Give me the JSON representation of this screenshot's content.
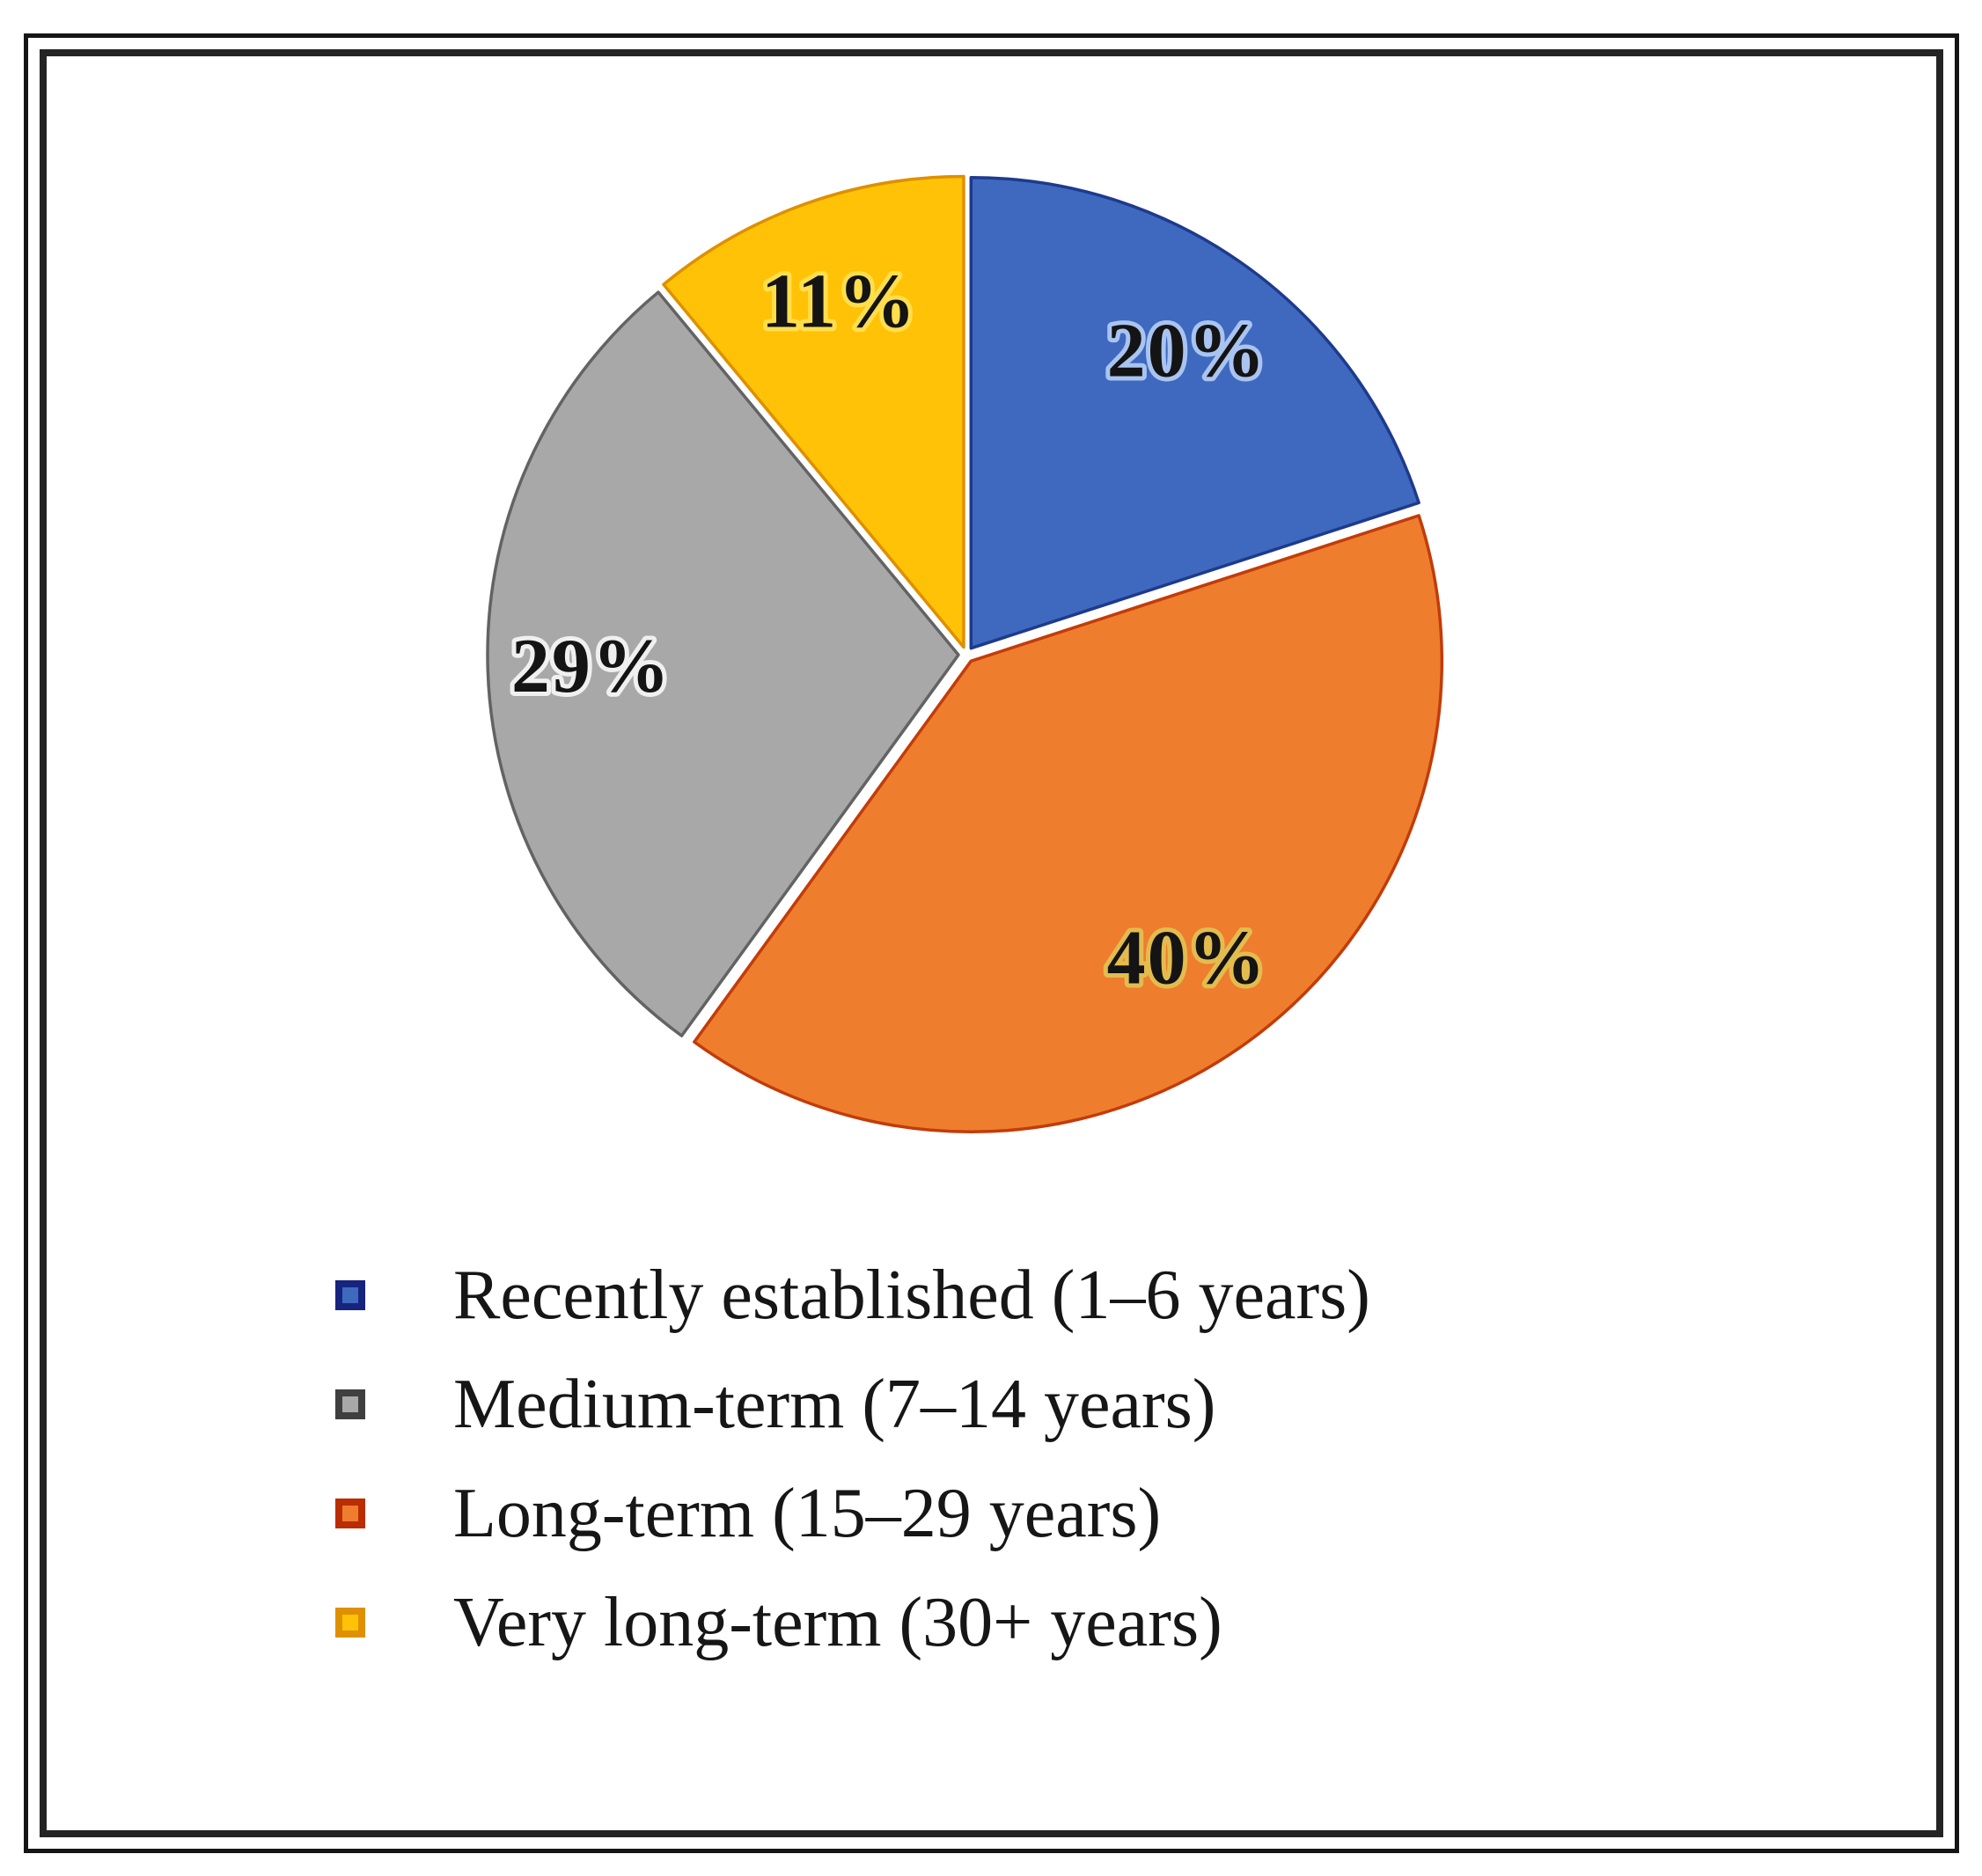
{
  "figure": {
    "background": "#FFFFFF",
    "outer_frame_color": "#151515",
    "inner_frame_color": "#242424"
  },
  "chart_data": {
    "type": "pie",
    "title": "",
    "unit": "percent",
    "start_angle_deg": 0,
    "direction": "clockwise",
    "legend_position": "bottom-left",
    "slices": [
      {
        "label": "Recently established (1–6 years)",
        "value": 20,
        "data_label": "20%",
        "fill": "#3E69BE",
        "border": "#1E3A8C",
        "halo": "#A9C4F0"
      },
      {
        "label": "Long-term (15–29 years)",
        "value": 40,
        "data_label": "40%",
        "fill": "#EF7D2E",
        "border": "#C23C09",
        "halo": "#E3BC4E"
      },
      {
        "label": "Medium-term (7–14 years)",
        "value": 29,
        "data_label": "29%",
        "fill": "#A8A8A8",
        "border": "#636363",
        "halo": "#F0F0F0"
      },
      {
        "label": "Very long-term (30+ years)",
        "value": 11,
        "data_label": "11%",
        "fill": "#FFC207",
        "border": "#DE9000",
        "halo": "#FFDE4D"
      }
    ]
  },
  "legend": {
    "items": [
      {
        "label": "Recently established (1–6 years)",
        "swatch_fill": "#3E69BE",
        "swatch_border": "#16247D"
      },
      {
        "label": "Medium-term (7–14 years)",
        "swatch_fill": "#A8A8A8",
        "swatch_border": "#3F3F3F"
      },
      {
        "label": "Long-term (15–29 years)",
        "swatch_fill": "#EF7D2E",
        "swatch_border": "#B92D00"
      },
      {
        "label": "Very long-term (30+ years)",
        "swatch_fill": "#FFC207",
        "swatch_border": "#DE9000"
      }
    ]
  }
}
